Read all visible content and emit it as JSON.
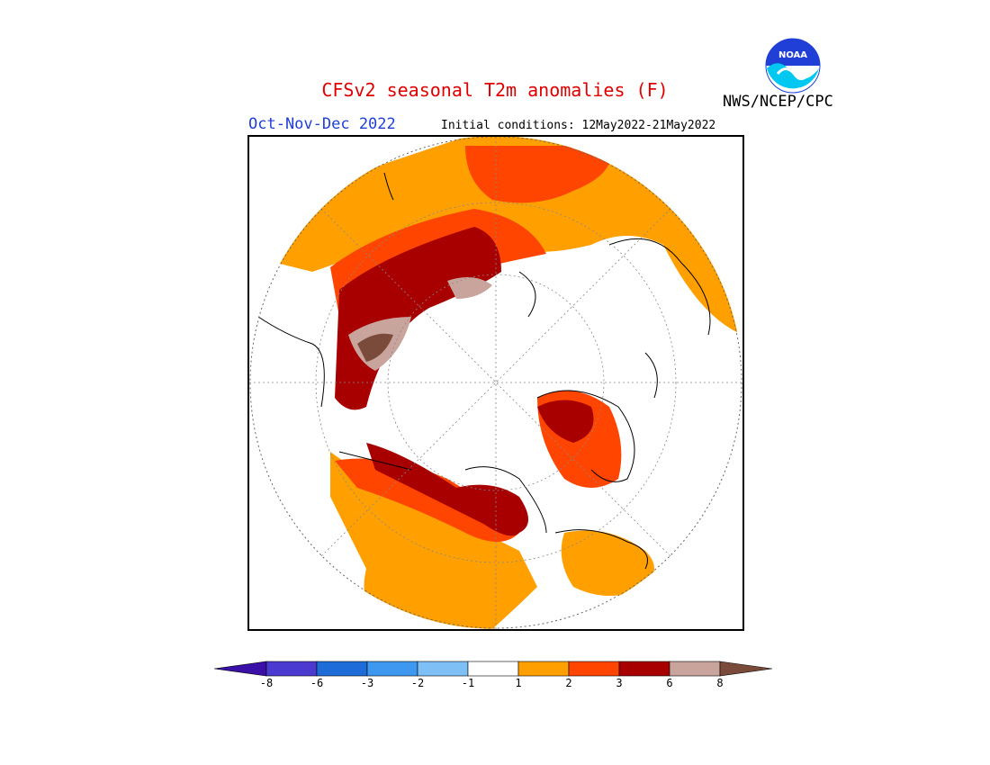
{
  "title": "CFSv2 seasonal T2m anomalies (F)",
  "title_color": "#e00000",
  "season": "Oct-Nov-Dec 2022",
  "season_color": "#1f3fd6",
  "initial_conditions": "Initial conditions: 12May2022-21May2022",
  "agency": "NWS/NCEP/CPC",
  "logo": {
    "text": "NOAA",
    "icon": "noaa-logo"
  },
  "colorbar": {
    "labels": [
      "-8",
      "-6",
      "-3",
      "-2",
      "-1",
      "1",
      "2",
      "3",
      "6",
      "8"
    ],
    "colors": [
      "#3a10a8",
      "#4a3ad0",
      "#1e6cd8",
      "#3f98f0",
      "#7ec0f5",
      "#ffffff",
      "#ffa000",
      "#ff4500",
      "#a80000",
      "#c8a49c",
      "#7a4a3a"
    ]
  },
  "legend_colors": {
    "anom_1_2": "#ffa000",
    "anom_2_3": "#ff4500",
    "anom_3_6": "#a80000",
    "anom_6_8": "#c8a49c",
    "anom_gt8": "#7a4a3a"
  }
}
